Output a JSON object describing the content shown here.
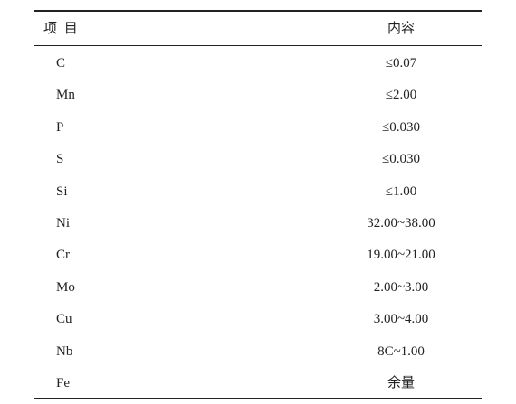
{
  "table": {
    "header": [
      "项 目",
      "内容"
    ],
    "rows": [
      [
        "C",
        "≤0.07"
      ],
      [
        "Mn",
        "≤2.00"
      ],
      [
        "P",
        "≤0.030"
      ],
      [
        "S",
        "≤0.030"
      ],
      [
        "Si",
        "≤1.00"
      ],
      [
        "Ni",
        "32.00~38.00"
      ],
      [
        "Cr",
        "19.00~21.00"
      ],
      [
        "Mo",
        "2.00~3.00"
      ],
      [
        "Cu",
        "3.00~4.00"
      ],
      [
        "Nb",
        "8C~1.00"
      ],
      [
        "Fe",
        "余量"
      ]
    ]
  }
}
